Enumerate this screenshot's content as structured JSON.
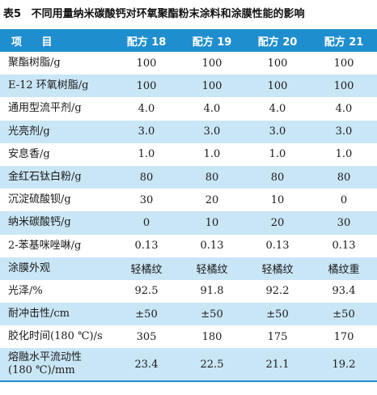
{
  "caption": {
    "number": "表5",
    "title": "不同用量纳米碳酸钙对环氧聚酯粉末涂料和涂膜性能的影响"
  },
  "table": {
    "headers": [
      "项 目",
      "配方 18",
      "配方 19",
      "配方 20",
      "配方 21"
    ],
    "rows": [
      {
        "label": "聚酯树脂/g",
        "values": [
          "100",
          "100",
          "100",
          "100"
        ]
      },
      {
        "label": "E-12 环氧树脂/g",
        "values": [
          "100",
          "100",
          "100",
          "100"
        ]
      },
      {
        "label": "通用型流平剂/g",
        "values": [
          "4.0",
          "4.0",
          "4.0",
          "4.0"
        ]
      },
      {
        "label": "光亮剂/g",
        "values": [
          "3.0",
          "3.0",
          "3.0",
          "3.0"
        ]
      },
      {
        "label": "安息香/g",
        "values": [
          "1.0",
          "1.0",
          "1.0",
          "1.0"
        ]
      },
      {
        "label": "金红石钛白粉/g",
        "values": [
          "80",
          "80",
          "80",
          "80"
        ]
      },
      {
        "label": "沉淀硫酸钡/g",
        "values": [
          "30",
          "20",
          "10",
          "0"
        ]
      },
      {
        "label": "纳米碳酸钙/g",
        "values": [
          "0",
          "10",
          "20",
          "30"
        ]
      },
      {
        "label": "2-苯基咪唑啉/g",
        "values": [
          "0.13",
          "0.13",
          "0.13",
          "0.13"
        ]
      },
      {
        "label": "涂膜外观",
        "values": [
          "轻橘纹",
          "轻橘纹",
          "轻橘纹",
          "橘纹重"
        ]
      },
      {
        "label": "光泽/%",
        "values": [
          "92.5",
          "91.8",
          "92.2",
          "93.4"
        ]
      },
      {
        "label": "耐冲击性/cm",
        "values": [
          "±50",
          "±50",
          "±50",
          "±50"
        ]
      },
      {
        "label": "胶化时间(180 ℃)/s",
        "values": [
          "305",
          "180",
          "175",
          "170"
        ]
      },
      {
        "label_line1": "熔融水平流动性",
        "label_line2": "(180 ℃)/mm",
        "values": [
          "23.4",
          "22.5",
          "21.1",
          "19.2"
        ]
      }
    ]
  },
  "colors": {
    "header_bg": "#1f8ecf",
    "header_text": "#ffffff",
    "stripe_bg": "#c9e6f6",
    "row_bg": "#ffffff"
  }
}
